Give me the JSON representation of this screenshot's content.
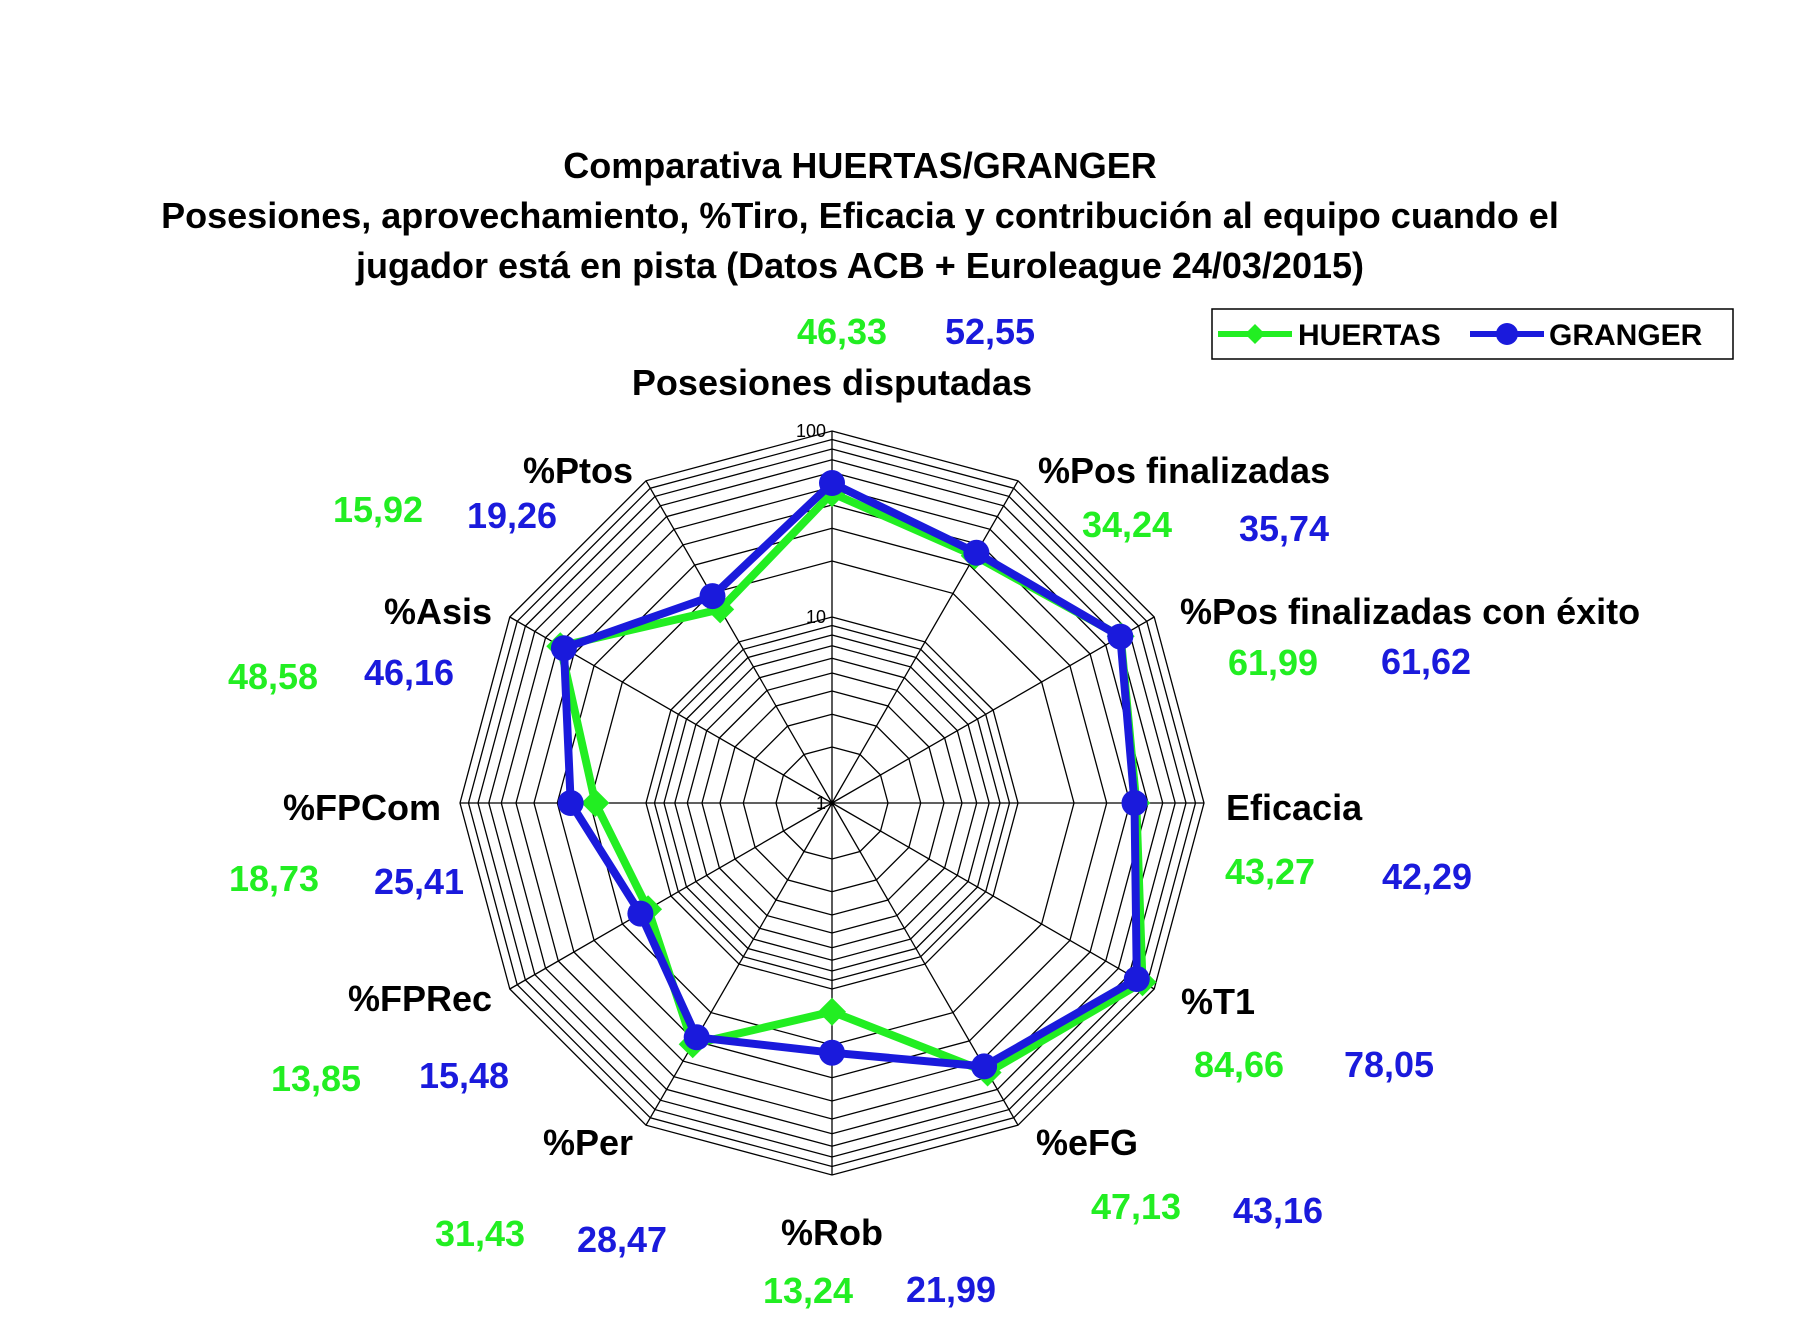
{
  "chart_data": {
    "type": "radar",
    "title": [
      "Comparativa HUERTAS/GRANGER",
      "Posesiones, aprovechamiento, %Tiro, Eficacia y contribución al equipo cuando el",
      "jugador está en pista (Datos ACB + Euroleague 24/03/2015)"
    ],
    "scale": "log",
    "rlim": [
      1,
      100
    ],
    "tick_labels": [
      "1",
      "10",
      "100"
    ],
    "grid": true,
    "legend_position": "top-right",
    "categories": [
      "Posesiones disputadas",
      "%Pos finalizadas",
      "%Pos finalizadas con éxito",
      "Eficacia",
      "%T1",
      "%eFG",
      "%Rob",
      "%Per",
      "%FPRec",
      "%FPCom",
      "%Asis",
      "%Ptos"
    ],
    "series": [
      {
        "name": "HUERTAS",
        "color": "#22ee22",
        "marker": "diamond",
        "values": [
          46.33,
          34.24,
          61.99,
          43.27,
          84.66,
          47.13,
          13.24,
          31.43,
          13.85,
          18.73,
          48.58,
          15.92
        ],
        "value_labels": [
          "46,33",
          "34,24",
          "61,99",
          "43,27",
          "84,66",
          "47,13",
          "13,24",
          "31,43",
          "13,85",
          "18,73",
          "48,58",
          "15,92"
        ]
      },
      {
        "name": "GRANGER",
        "color": "#1a1adc",
        "marker": "circle",
        "values": [
          52.55,
          35.74,
          61.62,
          42.29,
          78.05,
          43.16,
          21.99,
          28.47,
          15.48,
          25.41,
          46.16,
          19.26
        ],
        "value_labels": [
          "52,55",
          "35,74",
          "61,62",
          "42,29",
          "78,05",
          "43,16",
          "21,99",
          "28,47",
          "15,48",
          "25,41",
          "46,16",
          "19,26"
        ]
      }
    ]
  }
}
